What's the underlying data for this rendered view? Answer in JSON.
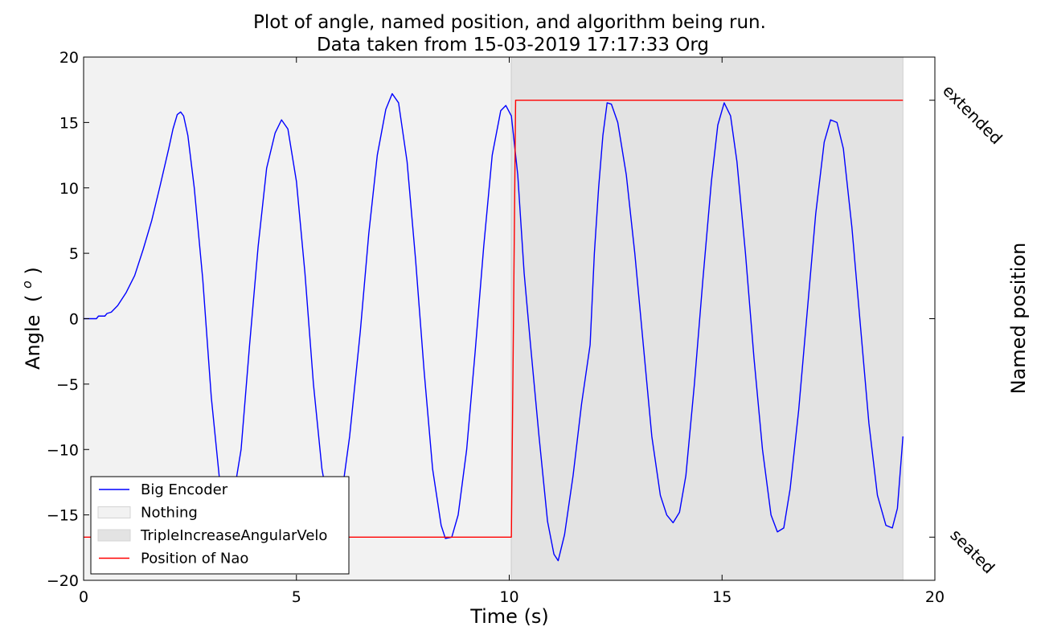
{
  "chart_data": {
    "type": "line",
    "title": "Plot of angle, named position, and algorithm being run.",
    "subtitle": "Data taken from 15-03-2019 17:17:33 Org",
    "xlabel": "Time (s)",
    "ylabel_text": "Angle",
    "ylabel_unit": "(°)",
    "ylabel_unit_base": "( ",
    "ylabel_unit_sup": "o",
    "ylabel_unit_close": " )",
    "y2label": "Named position",
    "xlim": [
      0,
      20
    ],
    "ylim": [
      -20,
      20
    ],
    "xticks": [
      0,
      5,
      10,
      15,
      20
    ],
    "yticks": [
      20,
      15,
      10,
      5,
      0,
      -5,
      -10,
      -15,
      -20
    ],
    "xtick_labels": [
      "0",
      "5",
      "10",
      "15",
      "20"
    ],
    "ytick_labels": [
      "20",
      "15",
      "10",
      "5",
      "0",
      "−5",
      "−10",
      "−15",
      "−20"
    ],
    "right_tick_values": [
      16.7,
      0,
      -16.7
    ],
    "right_tick_labels": [
      "extended",
      "",
      "seated"
    ],
    "grid": false,
    "legend_position": "lower-left",
    "spans": [
      {
        "name": "Nothing",
        "start": 0,
        "end": 10.05,
        "color": "#f2f2f2"
      },
      {
        "name": "TripleIncreaseAngularVelo",
        "start": 10.05,
        "end": 19.25,
        "color": "#e3e3e3"
      }
    ],
    "series": [
      {
        "name": "Big Encoder",
        "color": "#0000ff",
        "points": [
          [
            0,
            0
          ],
          [
            0.3,
            0
          ],
          [
            0.35,
            0.2
          ],
          [
            0.5,
            0.2
          ],
          [
            0.55,
            0.4
          ],
          [
            0.65,
            0.5
          ],
          [
            0.8,
            1.0
          ],
          [
            1.0,
            2.0
          ],
          [
            1.2,
            3.3
          ],
          [
            1.4,
            5.3
          ],
          [
            1.6,
            7.5
          ],
          [
            1.8,
            10.2
          ],
          [
            2.0,
            13.0
          ],
          [
            2.1,
            14.5
          ],
          [
            2.2,
            15.6
          ],
          [
            2.28,
            15.8
          ],
          [
            2.35,
            15.5
          ],
          [
            2.45,
            14.0
          ],
          [
            2.6,
            10.0
          ],
          [
            2.8,
            3.0
          ],
          [
            3.0,
            -6.0
          ],
          [
            3.2,
            -12.5
          ],
          [
            3.35,
            -14.3
          ],
          [
            3.5,
            -14.0
          ],
          [
            3.7,
            -10.0
          ],
          [
            3.9,
            -2.0
          ],
          [
            4.1,
            5.5
          ],
          [
            4.3,
            11.5
          ],
          [
            4.5,
            14.2
          ],
          [
            4.65,
            15.2
          ],
          [
            4.8,
            14.5
          ],
          [
            5.0,
            10.5
          ],
          [
            5.2,
            3.5
          ],
          [
            5.4,
            -5.0
          ],
          [
            5.6,
            -11.5
          ],
          [
            5.75,
            -14.2
          ],
          [
            5.9,
            -14.5
          ],
          [
            6.05,
            -13.8
          ],
          [
            6.25,
            -9.0
          ],
          [
            6.5,
            -1.0
          ],
          [
            6.7,
            6.5
          ],
          [
            6.9,
            12.5
          ],
          [
            7.1,
            16.0
          ],
          [
            7.25,
            17.2
          ],
          [
            7.4,
            16.5
          ],
          [
            7.6,
            12.0
          ],
          [
            7.8,
            4.5
          ],
          [
            8.0,
            -4.0
          ],
          [
            8.2,
            -11.5
          ],
          [
            8.4,
            -15.8
          ],
          [
            8.5,
            -16.8
          ],
          [
            8.65,
            -16.7
          ],
          [
            8.8,
            -15.0
          ],
          [
            9.0,
            -10.0
          ],
          [
            9.2,
            -2.5
          ],
          [
            9.4,
            5.5
          ],
          [
            9.6,
            12.5
          ],
          [
            9.8,
            15.9
          ],
          [
            9.92,
            16.3
          ],
          [
            10.05,
            15.5
          ],
          [
            10.2,
            11.0
          ],
          [
            10.35,
            3.5
          ],
          [
            10.5,
            -2.0
          ],
          [
            10.7,
            -9.0
          ],
          [
            10.9,
            -15.5
          ],
          [
            11.05,
            -18.0
          ],
          [
            11.15,
            -18.5
          ],
          [
            11.3,
            -16.5
          ],
          [
            11.5,
            -12.0
          ],
          [
            11.7,
            -6.5
          ],
          [
            11.9,
            -2.0
          ],
          [
            12.0,
            5.0
          ],
          [
            12.1,
            10.0
          ],
          [
            12.2,
            14.0
          ],
          [
            12.3,
            16.5
          ],
          [
            12.4,
            16.4
          ],
          [
            12.55,
            15.0
          ],
          [
            12.75,
            11.0
          ],
          [
            12.95,
            5.0
          ],
          [
            13.15,
            -2.0
          ],
          [
            13.35,
            -9.0
          ],
          [
            13.55,
            -13.5
          ],
          [
            13.7,
            -15.0
          ],
          [
            13.85,
            -15.6
          ],
          [
            14.0,
            -14.8
          ],
          [
            14.15,
            -12.0
          ],
          [
            14.35,
            -5.0
          ],
          [
            14.55,
            3.0
          ],
          [
            14.75,
            10.5
          ],
          [
            14.9,
            14.8
          ],
          [
            15.05,
            16.5
          ],
          [
            15.2,
            15.5
          ],
          [
            15.35,
            12.0
          ],
          [
            15.55,
            5.0
          ],
          [
            15.75,
            -3.0
          ],
          [
            15.95,
            -10.0
          ],
          [
            16.15,
            -15.0
          ],
          [
            16.3,
            -16.3
          ],
          [
            16.45,
            -16.0
          ],
          [
            16.6,
            -13.0
          ],
          [
            16.8,
            -7.0
          ],
          [
            17.0,
            0.5
          ],
          [
            17.2,
            8.0
          ],
          [
            17.4,
            13.5
          ],
          [
            17.55,
            15.2
          ],
          [
            17.7,
            15.0
          ],
          [
            17.85,
            13.0
          ],
          [
            18.05,
            7.0
          ],
          [
            18.25,
            -0.5
          ],
          [
            18.45,
            -8.0
          ],
          [
            18.65,
            -13.5
          ],
          [
            18.85,
            -15.8
          ],
          [
            19.0,
            -16.0
          ],
          [
            19.12,
            -14.5
          ],
          [
            19.25,
            -9.0
          ]
        ]
      },
      {
        "name": "Position of Nao",
        "color": "#ff0000",
        "points": [
          [
            0,
            -16.7
          ],
          [
            10.05,
            -16.7
          ],
          [
            10.15,
            16.7
          ],
          [
            19.25,
            16.7
          ]
        ]
      }
    ],
    "legend": [
      {
        "label": "Big Encoder",
        "kind": "line",
        "color": "#0000ff"
      },
      {
        "label": "Nothing",
        "kind": "patch",
        "color": "#f2f2f2"
      },
      {
        "label": "TripleIncreaseAngularVelo",
        "kind": "patch",
        "color": "#e3e3e3"
      },
      {
        "label": "Position of Nao",
        "kind": "line",
        "color": "#ff0000"
      }
    ]
  }
}
